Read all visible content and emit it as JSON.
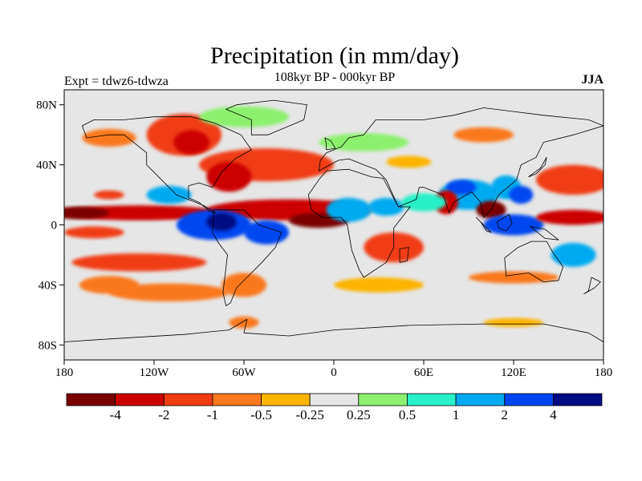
{
  "title": "Precipitation (in mm/day)",
  "subtitle": "108kyr BP - 000kyr BP",
  "left_label": "Expt = tdwz6-tdwza",
  "right_label": "JJA",
  "lat_ticks": [
    "80N",
    "40N",
    "0",
    "40S",
    "80S"
  ],
  "lon_ticks": [
    "180",
    "120W",
    "60W",
    "0",
    "60E",
    "120E",
    "180"
  ],
  "colorbar": {
    "colors": [
      "#7a0000",
      "#cc0000",
      "#f03c12",
      "#fa781e",
      "#fdb400",
      "#e6e6e6",
      "#8cf06e",
      "#28f0c8",
      "#00aaf0",
      "#0046f0",
      "#000a82"
    ],
    "labels": [
      "-4",
      "-2",
      "-1",
      "-0.5",
      "-0.25",
      "0.25",
      "0.5",
      "1",
      "2",
      "4"
    ]
  },
  "background_color": "#e6e6e6",
  "anomaly_blobs": [
    {
      "lon": -100,
      "lat": 60,
      "rx": 25,
      "ry": 14,
      "level": 2
    },
    {
      "lon": -95,
      "lat": 55,
      "rx": 12,
      "ry": 8,
      "level": 1
    },
    {
      "lon": -150,
      "lat": 58,
      "rx": 18,
      "ry": 6,
      "level": 3
    },
    {
      "lon": -60,
      "lat": 72,
      "rx": 30,
      "ry": 7,
      "level": 6
    },
    {
      "lon": -45,
      "lat": 40,
      "rx": 45,
      "ry": 11,
      "level": 2
    },
    {
      "lon": -70,
      "lat": 32,
      "rx": 15,
      "ry": 10,
      "level": 1
    },
    {
      "lon": -30,
      "lat": 10,
      "rx": 55,
      "ry": 7,
      "level": 1
    },
    {
      "lon": -10,
      "lat": 3,
      "rx": 20,
      "ry": 5,
      "level": 0
    },
    {
      "lon": -130,
      "lat": 8,
      "rx": 55,
      "ry": 5,
      "level": 1
    },
    {
      "lon": -170,
      "lat": 8,
      "rx": 20,
      "ry": 4,
      "level": 0
    },
    {
      "lon": -80,
      "lat": 0,
      "rx": 25,
      "ry": 10,
      "level": 9
    },
    {
      "lon": -75,
      "lat": 2,
      "rx": 10,
      "ry": 6,
      "level": 10
    },
    {
      "lon": -110,
      "lat": 20,
      "rx": 15,
      "ry": 6,
      "level": 8
    },
    {
      "lon": -45,
      "lat": -5,
      "rx": 15,
      "ry": 8,
      "level": 9
    },
    {
      "lon": 10,
      "lat": 10,
      "rx": 15,
      "ry": 8,
      "level": 8
    },
    {
      "lon": 35,
      "lat": 12,
      "rx": 12,
      "ry": 6,
      "level": 8
    },
    {
      "lon": -160,
      "lat": -5,
      "rx": 20,
      "ry": 4,
      "level": 2
    },
    {
      "lon": -130,
      "lat": -25,
      "rx": 45,
      "ry": 6,
      "level": 2
    },
    {
      "lon": -110,
      "lat": -45,
      "rx": 40,
      "ry": 6,
      "level": 3
    },
    {
      "lon": -150,
      "lat": -40,
      "rx": 20,
      "ry": 6,
      "level": 3
    },
    {
      "lon": -60,
      "lat": -40,
      "rx": 15,
      "ry": 8,
      "level": 3
    },
    {
      "lon": 40,
      "lat": -15,
      "rx": 20,
      "ry": 10,
      "level": 2
    },
    {
      "lon": 30,
      "lat": -40,
      "rx": 30,
      "ry": 5,
      "level": 4
    },
    {
      "lon": 90,
      "lat": 20,
      "rx": 20,
      "ry": 10,
      "level": 8
    },
    {
      "lon": 85,
      "lat": 25,
      "rx": 10,
      "ry": 5,
      "level": 9
    },
    {
      "lon": 75,
      "lat": 15,
      "rx": 8,
      "ry": 8,
      "level": 1
    },
    {
      "lon": 60,
      "lat": 15,
      "rx": 15,
      "ry": 6,
      "level": 7
    },
    {
      "lon": 115,
      "lat": 25,
      "rx": 10,
      "ry": 8,
      "level": 8
    },
    {
      "lon": 105,
      "lat": 10,
      "rx": 10,
      "ry": 6,
      "level": 0
    },
    {
      "lon": 125,
      "lat": 20,
      "rx": 8,
      "ry": 6,
      "level": 9
    },
    {
      "lon": 120,
      "lat": 0,
      "rx": 20,
      "ry": 7,
      "level": 9
    },
    {
      "lon": 160,
      "lat": 30,
      "rx": 25,
      "ry": 10,
      "level": 2
    },
    {
      "lon": 160,
      "lat": 5,
      "rx": 25,
      "ry": 5,
      "level": 1
    },
    {
      "lon": 120,
      "lat": -35,
      "rx": 30,
      "ry": 4,
      "level": 3
    },
    {
      "lon": 160,
      "lat": -20,
      "rx": 15,
      "ry": 8,
      "level": 8
    },
    {
      "lon": 20,
      "lat": 55,
      "rx": 30,
      "ry": 6,
      "level": 6
    },
    {
      "lon": 100,
      "lat": 60,
      "rx": 20,
      "ry": 5,
      "level": 3
    },
    {
      "lon": -150,
      "lat": 20,
      "rx": 10,
      "ry": 3,
      "level": 2
    },
    {
      "lon": 50,
      "lat": 42,
      "rx": 15,
      "ry": 4,
      "level": 4
    },
    {
      "lon": 120,
      "lat": -65,
      "rx": 20,
      "ry": 3,
      "level": 4
    },
    {
      "lon": -60,
      "lat": -65,
      "rx": 10,
      "ry": 4,
      "level": 3
    }
  ],
  "continents": [
    {
      "name": "north-america",
      "points": [
        [
          -168,
          66
        ],
        [
          -160,
          70
        ],
        [
          -140,
          70
        ],
        [
          -120,
          72
        ],
        [
          -95,
          72
        ],
        [
          -80,
          68
        ],
        [
          -62,
          60
        ],
        [
          -55,
          50
        ],
        [
          -66,
          44
        ],
        [
          -75,
          35
        ],
        [
          -81,
          25
        ],
        [
          -90,
          28
        ],
        [
          -97,
          26
        ],
        [
          -97,
          18
        ],
        [
          -90,
          15
        ],
        [
          -83,
          9
        ],
        [
          -79,
          8
        ],
        [
          -87,
          13
        ],
        [
          -105,
          20
        ],
        [
          -115,
          30
        ],
        [
          -125,
          40
        ],
        [
          -125,
          48
        ],
        [
          -140,
          60
        ],
        [
          -150,
          60
        ],
        [
          -165,
          58
        ]
      ]
    },
    {
      "name": "greenland",
      "points": [
        [
          -55,
          60
        ],
        [
          -44,
          60
        ],
        [
          -20,
          70
        ],
        [
          -18,
          80
        ],
        [
          -40,
          83
        ],
        [
          -65,
          80
        ],
        [
          -72,
          77
        ],
        [
          -55,
          70
        ]
      ]
    },
    {
      "name": "south-america",
      "points": [
        [
          -80,
          10
        ],
        [
          -60,
          10
        ],
        [
          -50,
          0
        ],
        [
          -35,
          -5
        ],
        [
          -39,
          -15
        ],
        [
          -48,
          -25
        ],
        [
          -58,
          -35
        ],
        [
          -65,
          -42
        ],
        [
          -69,
          -52
        ],
        [
          -72,
          -54
        ],
        [
          -74,
          -45
        ],
        [
          -71,
          -20
        ],
        [
          -77,
          -12
        ],
        [
          -81,
          -5
        ]
      ]
    },
    {
      "name": "africa",
      "points": [
        [
          -17,
          20
        ],
        [
          -10,
          30
        ],
        [
          -5,
          36
        ],
        [
          10,
          37
        ],
        [
          25,
          32
        ],
        [
          33,
          31
        ],
        [
          43,
          12
        ],
        [
          51,
          12
        ],
        [
          40,
          -2
        ],
        [
          40,
          -15
        ],
        [
          35,
          -25
        ],
        [
          20,
          -35
        ],
        [
          17,
          -30
        ],
        [
          12,
          -17
        ],
        [
          9,
          0
        ],
        [
          5,
          5
        ],
        [
          -8,
          5
        ],
        [
          -15,
          10
        ]
      ]
    },
    {
      "name": "eurasia",
      "points": [
        [
          -10,
          36
        ],
        [
          -9,
          43
        ],
        [
          -5,
          48
        ],
        [
          5,
          52
        ],
        [
          10,
          58
        ],
        [
          20,
          60
        ],
        [
          28,
          70
        ],
        [
          60,
          70
        ],
        [
          80,
          73
        ],
        [
          100,
          78
        ],
        [
          140,
          73
        ],
        [
          170,
          70
        ],
        [
          180,
          66
        ],
        [
          160,
          60
        ],
        [
          140,
          55
        ],
        [
          135,
          45
        ],
        [
          125,
          40
        ],
        [
          122,
          30
        ],
        [
          110,
          20
        ],
        [
          105,
          10
        ],
        [
          100,
          5
        ],
        [
          98,
          15
        ],
        [
          92,
          22
        ],
        [
          80,
          15
        ],
        [
          77,
          8
        ],
        [
          73,
          20
        ],
        [
          60,
          25
        ],
        [
          57,
          25
        ],
        [
          55,
          17
        ],
        [
          43,
          12
        ],
        [
          35,
          30
        ],
        [
          28,
          37
        ],
        [
          20,
          40
        ],
        [
          10,
          44
        ],
        [
          3,
          43
        ]
      ]
    },
    {
      "name": "australia",
      "points": [
        [
          114,
          -22
        ],
        [
          123,
          -15
        ],
        [
          132,
          -11
        ],
        [
          142,
          -11
        ],
        [
          146,
          -18
        ],
        [
          153,
          -28
        ],
        [
          150,
          -37
        ],
        [
          140,
          -38
        ],
        [
          130,
          -32
        ],
        [
          115,
          -34
        ]
      ]
    },
    {
      "name": "antarctica",
      "points": [
        [
          -180,
          -78
        ],
        [
          -150,
          -76
        ],
        [
          -100,
          -73
        ],
        [
          -70,
          -70
        ],
        [
          -58,
          -63
        ],
        [
          -60,
          -72
        ],
        [
          -30,
          -74
        ],
        [
          0,
          -70
        ],
        [
          50,
          -67
        ],
        [
          100,
          -66
        ],
        [
          140,
          -66
        ],
        [
          170,
          -72
        ],
        [
          180,
          -78
        ],
        [
          180,
          -90
        ],
        [
          -180,
          -90
        ]
      ]
    },
    {
      "name": "madagascar",
      "points": [
        [
          44,
          -16
        ],
        [
          50,
          -15
        ],
        [
          49,
          -24
        ],
        [
          44,
          -25
        ]
      ]
    },
    {
      "name": "japan",
      "points": [
        [
          130,
          32
        ],
        [
          135,
          34
        ],
        [
          141,
          40
        ],
        [
          142,
          45
        ],
        [
          138,
          38
        ]
      ]
    },
    {
      "name": "uk",
      "points": [
        [
          -5,
          50
        ],
        [
          1,
          51
        ],
        [
          -2,
          56
        ],
        [
          -6,
          58
        ],
        [
          -5,
          54
        ]
      ]
    },
    {
      "name": "borneo",
      "points": [
        [
          109,
          2
        ],
        [
          117,
          7
        ],
        [
          119,
          1
        ],
        [
          115,
          -4
        ],
        [
          110,
          -2
        ]
      ]
    },
    {
      "name": "sumatra",
      "points": [
        [
          95,
          5
        ],
        [
          105,
          -5
        ],
        [
          102,
          -4
        ],
        [
          98,
          2
        ]
      ]
    },
    {
      "name": "new-guinea",
      "points": [
        [
          131,
          -1
        ],
        [
          141,
          -3
        ],
        [
          150,
          -10
        ],
        [
          141,
          -9
        ]
      ]
    },
    {
      "name": "new-zealand",
      "points": [
        [
          172,
          -35
        ],
        [
          178,
          -38
        ],
        [
          174,
          -42
        ],
        [
          167,
          -46
        ],
        [
          170,
          -44
        ]
      ]
    }
  ]
}
